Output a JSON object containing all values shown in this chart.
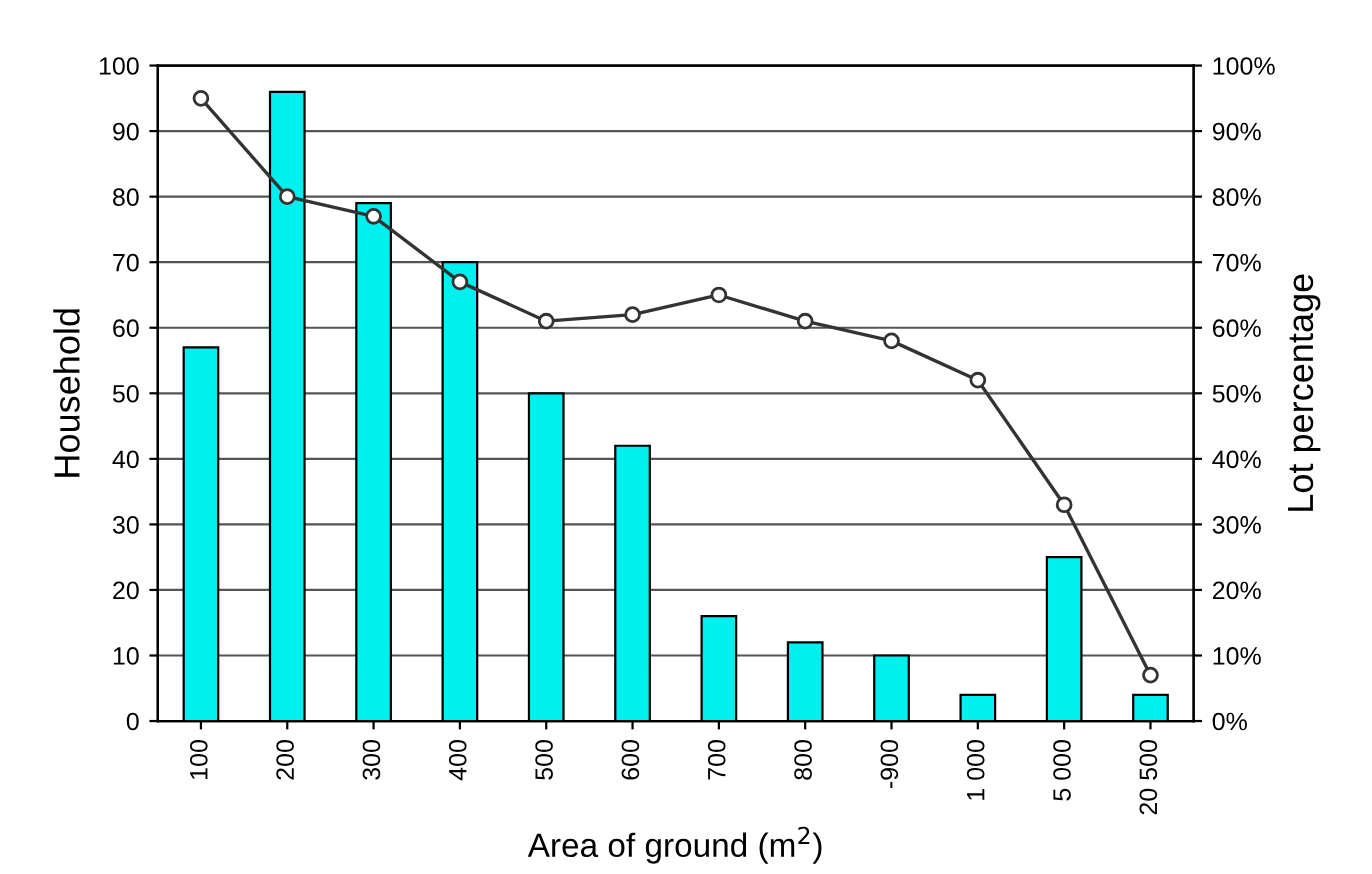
{
  "chart_data": {
    "type": "bar",
    "xlabel": "Area of ground (m$^{2}$)",
    "ylabel": "Household",
    "y2label": "Lot percentage",
    "categories": [
      "100",
      "200",
      "300",
      "400",
      "500",
      "600",
      "700",
      "800",
      "-900",
      "1 000",
      "5 000",
      "20 500"
    ],
    "series": [
      {
        "color": "#00f0f0",
        "values": [
          57,
          96,
          79,
          70,
          50,
          42,
          16,
          12,
          10,
          4,
          25,
          4
        ]
      },
      {
        "type": "line",
        "axis": "y2",
        "color": "#333333",
        "marker": "circle",
        "line_style": "solid",
        "values": [
          95,
          80,
          77,
          67,
          61,
          62,
          65,
          61,
          58,
          52,
          33,
          7
        ]
      }
    ],
    "ylim": [
      0,
      100
    ],
    "yticks": [
      0,
      10,
      20,
      30,
      40,
      50,
      60,
      70,
      80,
      90,
      100
    ],
    "y2lim": [
      0,
      100
    ],
    "y2ticks": [
      {
        "value": 0,
        "label": "0%"
      },
      {
        "value": 10,
        "label": "10%"
      },
      {
        "value": 20,
        "label": "20%"
      },
      {
        "value": 30,
        "label": "30%"
      },
      {
        "value": 40,
        "label": "40%"
      },
      {
        "value": 50,
        "label": "50%"
      },
      {
        "value": 60,
        "label": "60%"
      },
      {
        "value": 70,
        "label": "70%"
      },
      {
        "value": 80,
        "label": "80%"
      },
      {
        "value": 90,
        "label": "90%"
      },
      {
        "value": 100,
        "label": "100%"
      }
    ],
    "grid": "y",
    "legend": false
  }
}
